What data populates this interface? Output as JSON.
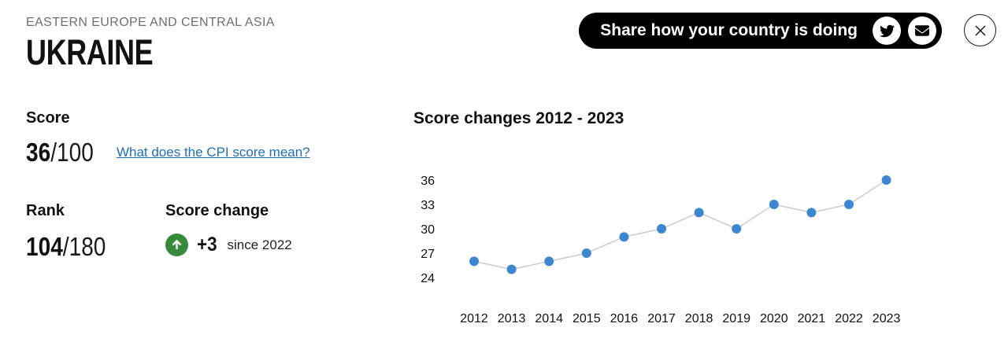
{
  "header": {
    "region": "EASTERN EUROPE AND CENTRAL ASIA",
    "country": "UKRAINE",
    "share_label": "Share how your country is doing"
  },
  "icons": {
    "twitter": "twitter-bird-icon",
    "email": "envelope-icon",
    "close": "x-icon",
    "score_change": "arrow-up-icon"
  },
  "score": {
    "label": "Score",
    "value": "36",
    "denominator": "/100",
    "link": "What does the CPI score mean?"
  },
  "rank": {
    "label": "Rank",
    "value": "104",
    "denominator": "/180"
  },
  "score_change": {
    "label": "Score change",
    "delta": "+3",
    "since": "since 2022",
    "direction": "up",
    "badge_color": "#388a3c"
  },
  "chart_data": {
    "type": "line",
    "title": "Score changes 2012 - 2023",
    "categories": [
      "2012",
      "2013",
      "2014",
      "2015",
      "2016",
      "2017",
      "2018",
      "2019",
      "2020",
      "2021",
      "2022",
      "2023"
    ],
    "values": [
      26,
      25,
      26,
      27,
      29,
      30,
      32,
      30,
      33,
      32,
      33,
      36
    ],
    "yticks": [
      24,
      27,
      30,
      33,
      36
    ],
    "ylim": [
      24,
      36
    ],
    "xlabel": "",
    "ylabel": "",
    "grid": false,
    "legend": "none",
    "point_color": "#3d87d1",
    "line_color": "#cccccc",
    "marker": "circle"
  }
}
